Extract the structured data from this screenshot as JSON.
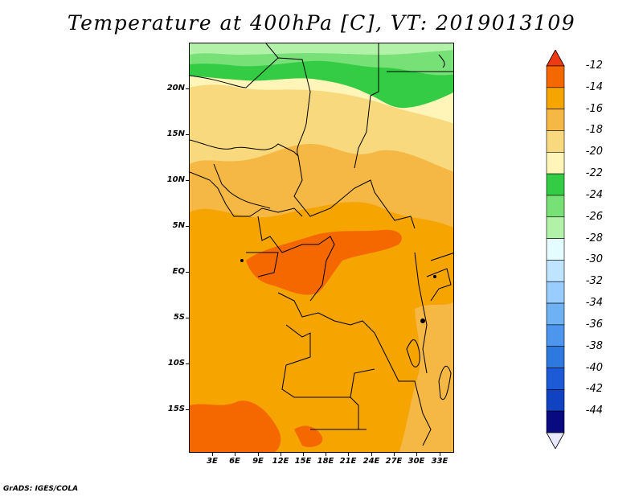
{
  "title": "Temperature at 400hPa [C], VT: 2019013109",
  "credit": "GrADS: IGES/COLA",
  "map": {
    "y_axis_labels": [
      "20N",
      "15N",
      "10N",
      "5N",
      "EQ",
      "5S",
      "10S",
      "15S"
    ],
    "x_axis_labels": [
      "3E",
      "6E",
      "9E",
      "12E",
      "15E",
      "18E",
      "21E",
      "24E",
      "27E",
      "30E",
      "33E"
    ],
    "lat_range": [
      -20,
      25
    ],
    "lon_range": [
      0,
      35
    ]
  },
  "colorbar": {
    "labels": [
      "-12",
      "-14",
      "-16",
      "-18",
      "-20",
      "-22",
      "-24",
      "-26",
      "-28",
      "-30",
      "-32",
      "-34",
      "-36",
      "-38",
      "-40",
      "-42",
      "-44"
    ],
    "colors": [
      "#ee3a12",
      "#f56800",
      "#f5a400",
      "#f5b844",
      "#f8d97e",
      "#fff5b8",
      "#33cc44",
      "#77e077",
      "#b2f2a8",
      "#e4fcff",
      "#bfe4ff",
      "#99ccff",
      "#6fb2f3",
      "#4c96ee",
      "#2e79e0",
      "#1c5ad6",
      "#1042c2",
      "#0a0a80",
      "#e8e8ff"
    ]
  },
  "chart_data": {
    "type": "heatmap",
    "title": "Temperature at 400hPa [C], VT: 2019013109",
    "xlabel": "",
    "ylabel": "",
    "x_ticks": [
      "3E",
      "6E",
      "9E",
      "12E",
      "15E",
      "18E",
      "21E",
      "24E",
      "27E",
      "30E",
      "33E"
    ],
    "y_ticks": [
      "20N",
      "15N",
      "10N",
      "5N",
      "EQ",
      "5S",
      "10S",
      "15S"
    ],
    "legend_levels": [
      -12,
      -14,
      -16,
      -18,
      -20,
      -22,
      -24,
      -26,
      -28,
      -30,
      -32,
      -34,
      -36,
      -38,
      -40,
      -42,
      -44
    ],
    "value_range_shown": [
      -28,
      -12
    ]
  }
}
